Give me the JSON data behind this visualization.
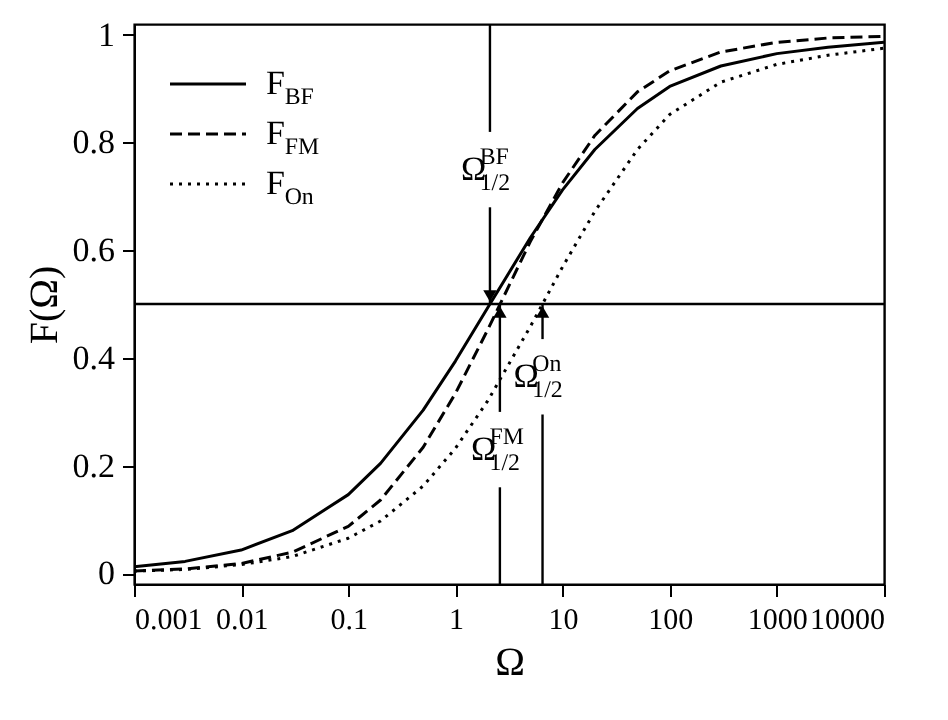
{
  "chart_data": {
    "type": "line",
    "xlabel": "Ω",
    "ylabel": "F(Ω)",
    "log": "x",
    "legend": "top left",
    "grid": false,
    "x": [
      0.001,
      0.003,
      0.01,
      0.03,
      0.1,
      0.2,
      0.5,
      1,
      2,
      5,
      10,
      20,
      50,
      100,
      300,
      1000,
      3000,
      10000
    ],
    "series": [
      {
        "name": "F$_{BF}$",
        "color": "#000000",
        "line_style": "solid",
        "values": [
          0.012,
          0.022,
          0.043,
          0.079,
          0.146,
          0.204,
          0.303,
          0.394,
          0.493,
          0.623,
          0.712,
          0.787,
          0.863,
          0.904,
          0.942,
          0.965,
          0.977,
          0.986
        ]
      },
      {
        "name": "F$_{FM}$",
        "color": "#000000",
        "line_style": "dashed",
        "values": [
          0.004,
          0.008,
          0.018,
          0.039,
          0.087,
          0.136,
          0.234,
          0.334,
          0.452,
          0.616,
          0.725,
          0.813,
          0.894,
          0.933,
          0.968,
          0.986,
          0.994,
          0.997
        ]
      },
      {
        "name": "F$_{On}$",
        "color": "#000000",
        "line_style": "dotted",
        "values": [
          0.004,
          0.007,
          0.016,
          0.031,
          0.065,
          0.097,
          0.162,
          0.232,
          0.32,
          0.458,
          0.569,
          0.672,
          0.787,
          0.852,
          0.912,
          0.945,
          0.962,
          0.975
        ]
      }
    ],
    "xlim": [
      0.001,
      10000
    ],
    "xticks": [
      0.001,
      0.01,
      0.1,
      1,
      10,
      100,
      1000,
      10000
    ],
    "ylim": [
      -0.02,
      1.02
    ],
    "yticks": [
      0,
      0.2,
      0.4,
      0.6,
      0.8,
      1
    ],
    "ref_lines": [
      {
        "axis": "y",
        "value": 0.5,
        "color": "#000000"
      }
    ],
    "annotations": [
      {
        "text": "Ω$^{BF}$$_{1/2}$",
        "x": 2.1,
        "y": 0.5
      },
      {
        "text": "Ω$^{FM}$$_{1/2}$",
        "x": 2.6,
        "y": 0.5
      },
      {
        "text": "Ω$^{On}$$_{1/2}$",
        "x": 6.5,
        "y": 0.5
      }
    ]
  }
}
